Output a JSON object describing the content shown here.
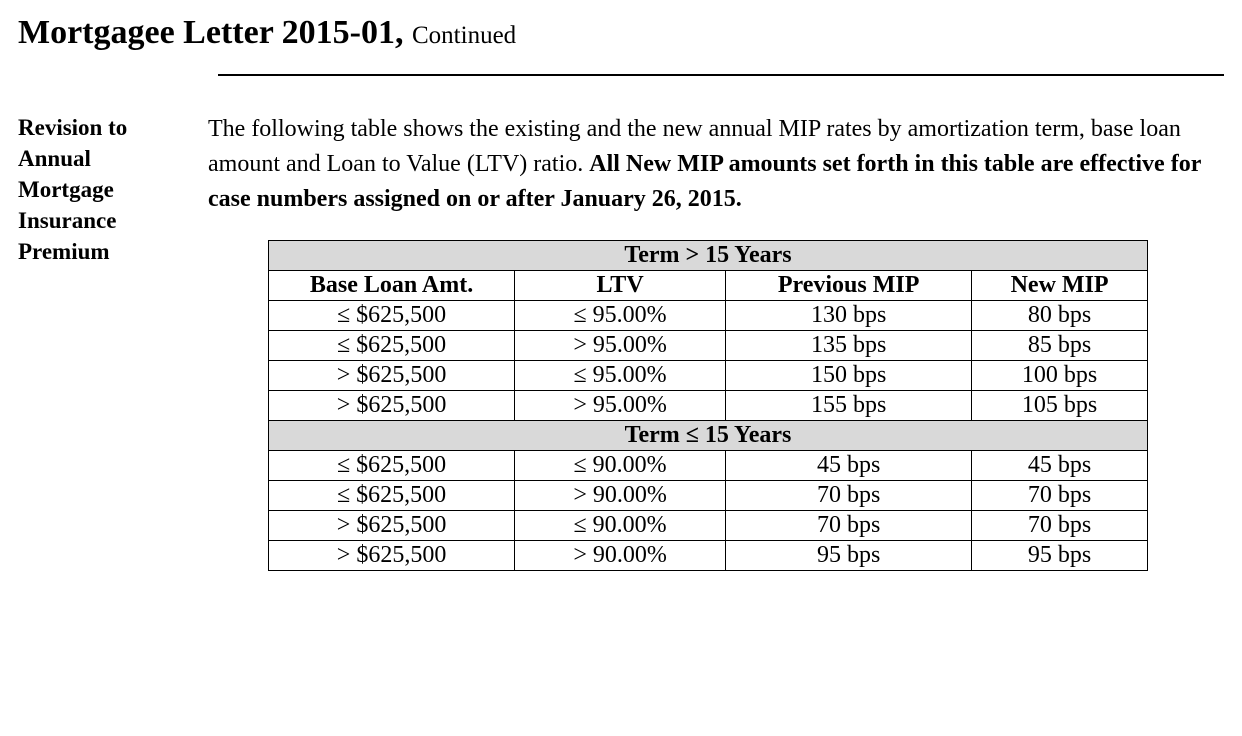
{
  "colors": {
    "background": "#ffffff",
    "text": "#000000",
    "section_header_bg": "#d9d9d9",
    "border": "#000000"
  },
  "typography": {
    "family": "Times New Roman",
    "title_fontsize_pt": 26,
    "continued_fontsize_pt": 19,
    "body_fontsize_pt": 18,
    "table_fontsize_pt": 18
  },
  "header": {
    "title_main": "Mortgagee Letter 2015-01,",
    "continued": "Continued"
  },
  "side_label": "Revision to Annual Mortgage Insurance Premium",
  "intro": {
    "plain": "The following table shows the existing and the new annual MIP rates by amortization term, base loan amount and Loan to Value (LTV) ratio.  ",
    "bold": "All New MIP amounts set forth in this table are effective for case numbers assigned on or after January 26, 2015."
  },
  "table": {
    "type": "table",
    "column_count": 4,
    "columns": [
      "Base Loan Amt.",
      "LTV",
      "Previous MIP",
      "New MIP"
    ],
    "column_widths_pct": [
      28,
      24,
      28,
      20
    ],
    "column_alignment": [
      "center",
      "center",
      "center",
      "center"
    ],
    "sections": [
      {
        "header": "Term > 15 Years",
        "rows": [
          [
            "≤ $625,500",
            "≤ 95.00%",
            "130 bps",
            "80 bps"
          ],
          [
            "≤ $625,500",
            "> 95.00%",
            "135 bps",
            "85 bps"
          ],
          [
            "> $625,500",
            "≤ 95.00%",
            "150 bps",
            "100 bps"
          ],
          [
            "> $625,500",
            "> 95.00%",
            "155 bps",
            "105 bps"
          ]
        ]
      },
      {
        "header": "Term ≤ 15 Years",
        "rows": [
          [
            "≤ $625,500",
            "≤ 90.00%",
            "45 bps",
            "45 bps"
          ],
          [
            "≤ $625,500",
            "> 90.00%",
            "70 bps",
            "70 bps"
          ],
          [
            "> $625,500",
            "≤ 90.00%",
            "70 bps",
            "70 bps"
          ],
          [
            "> $625,500",
            "> 90.00%",
            "95 bps",
            "95 bps"
          ]
        ]
      }
    ]
  }
}
